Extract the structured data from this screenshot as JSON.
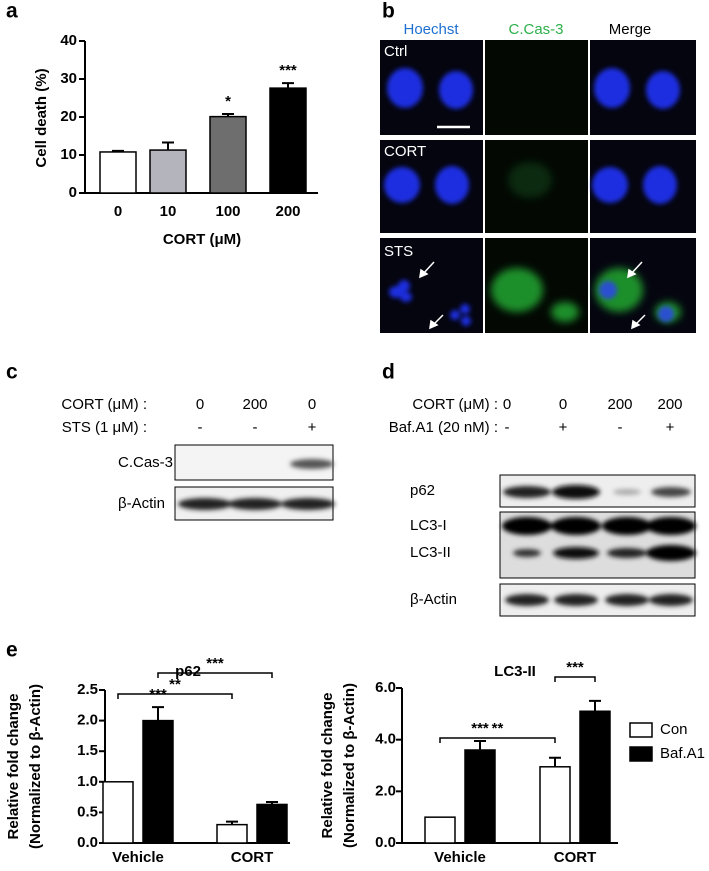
{
  "figure": {
    "panel_labels": [
      "a",
      "b",
      "c",
      "d",
      "e"
    ],
    "b": {
      "columns": [
        "Hoechst",
        "C.Cas-3",
        "Merge"
      ],
      "rows": [
        "Ctrl",
        "CORT",
        "STS"
      ]
    },
    "c": {
      "conditions": [
        {
          "label": "CORT (μM) :",
          "values": [
            "0",
            "200",
            "0"
          ]
        },
        {
          "label": "STS (1 μM) :",
          "values": [
            "-",
            "-",
            "+"
          ]
        }
      ],
      "bands": [
        "C.Cas-3",
        "β-Actin"
      ]
    },
    "d": {
      "conditions": [
        {
          "label": "CORT (μM) :",
          "values": [
            "0",
            "0",
            "200",
            "200"
          ]
        },
        {
          "label": "Baf.A1 (20 nM) :",
          "values": [
            "-",
            "+",
            "-",
            "+"
          ]
        }
      ],
      "bands": [
        "p62",
        "LC3-I",
        "LC3-II",
        "β-Actin"
      ]
    }
  },
  "chart_data": [
    {
      "type": "bar",
      "ylabel": "Cell death (%)",
      "xlabel": "CORT (μM)",
      "categories": [
        "0",
        "10",
        "100",
        "200"
      ],
      "values": [
        10.8,
        11.3,
        20.1,
        27.6
      ],
      "errors": [
        0.3,
        2.0,
        0.7,
        1.3
      ],
      "colors": [
        "#ffffff",
        "#b4b4bc",
        "#6e6e6e",
        "#000000"
      ],
      "significance": [
        null,
        null,
        "*",
        "***"
      ],
      "ylim": [
        0,
        40
      ],
      "yticks": [
        0,
        10,
        20,
        30,
        40
      ]
    },
    {
      "type": "grouped-bar",
      "title": "p62",
      "ylabel": [
        "Relative  fold change",
        "(Normalized to β-Actin)"
      ],
      "categories": [
        "Vehicle",
        "CORT"
      ],
      "series": [
        {
          "color": "#ffffff",
          "values": [
            1.0,
            0.3
          ],
          "errors": [
            null,
            0.05
          ]
        },
        {
          "color": "#000000",
          "values": [
            2.0,
            0.63
          ],
          "errors": [
            0.22,
            0.04
          ]
        }
      ],
      "annotations": [
        "***",
        "**",
        "***"
      ],
      "ylim": [
        0,
        2.5
      ],
      "yticks": [
        {
          "value": 0,
          "label": "0.0"
        },
        0.5,
        {
          "value": 1,
          "label": "1.0"
        },
        1.5,
        {
          "value": 2,
          "label": "2.0"
        },
        2.5
      ]
    },
    {
      "type": "grouped-bar",
      "title": "LC3-II",
      "ylabel": [
        "Relative  fold change",
        "(Normalized to β-Actin)"
      ],
      "categories": [
        "Vehicle",
        "CORT"
      ],
      "series": [
        {
          "name": "Con",
          "color": "#ffffff",
          "values": [
            1.0,
            2.95
          ],
          "errors": [
            null,
            0.35
          ]
        },
        {
          "name": "Baf.A1",
          "color": "#000000",
          "values": [
            3.6,
            5.1
          ],
          "errors": [
            0.35,
            0.4
          ]
        }
      ],
      "annotations": [
        "***",
        "***",
        "**"
      ],
      "legend": "right",
      "ylim": [
        0,
        6
      ],
      "yticks": [
        {
          "value": 0,
          "label": "0.0"
        },
        {
          "value": 2,
          "label": "2.0"
        },
        {
          "value": 4,
          "label": "4.0"
        },
        {
          "value": 6,
          "label": "6.0"
        }
      ]
    }
  ]
}
